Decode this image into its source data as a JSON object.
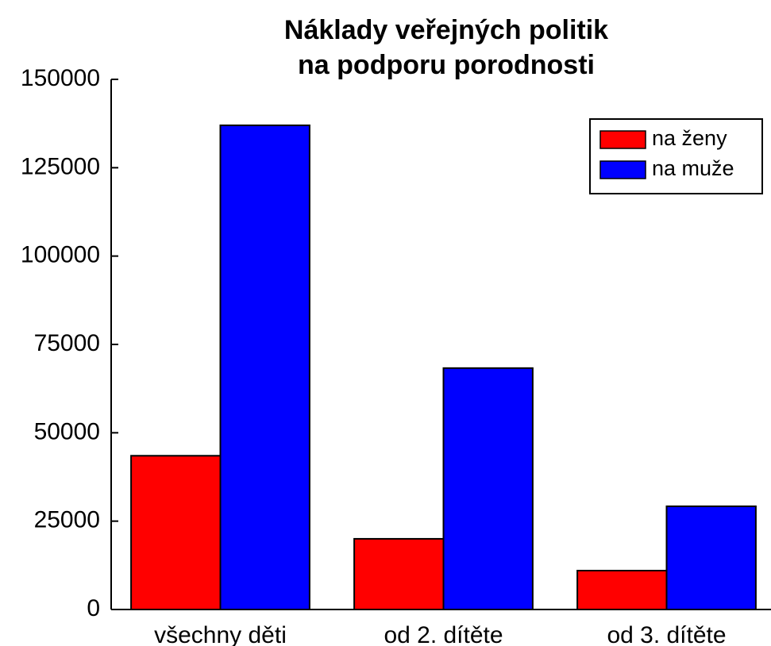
{
  "chart_data": {
    "type": "bar",
    "title": [
      "Náklady veřejných politik",
      "na podporu porodnosti"
    ],
    "categories": [
      "všechny děti",
      "od 2. dítěte",
      "od 3. dítěte"
    ],
    "series": [
      {
        "name": "na ženy",
        "color": "#ff0000",
        "values": [
          43500,
          20000,
          11000
        ]
      },
      {
        "name": "na muže",
        "color": "#0000ff",
        "values": [
          137000,
          68300,
          29200
        ]
      }
    ],
    "ylim": [
      0,
      150000
    ],
    "yticks": [
      0,
      25000,
      50000,
      75000,
      100000,
      125000,
      150000
    ],
    "legend": "upper right"
  }
}
